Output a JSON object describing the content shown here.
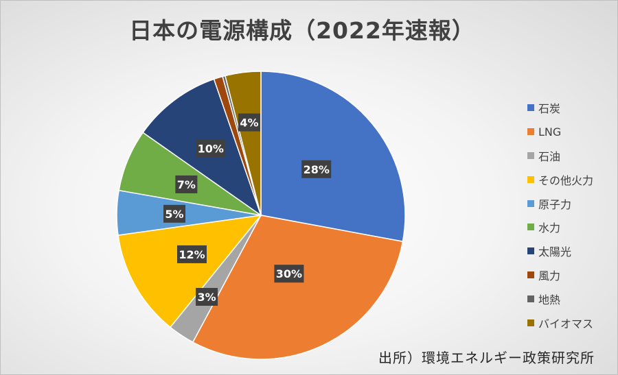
{
  "chart_data": {
    "type": "pie",
    "title": "日本の電源構成（2022年速報）",
    "categories": [
      "石炭",
      "LNG",
      "石油",
      "その他火力",
      "原子力",
      "水力",
      "太陽光",
      "風力",
      "地熱",
      "バイオマス"
    ],
    "values": [
      28,
      30,
      3,
      12,
      5,
      7,
      10,
      1,
      0.3,
      4
    ],
    "data_labels": [
      "28%",
      "30%",
      "3%",
      "12%",
      "5%",
      "7%",
      "10%",
      "",
      "",
      "4%"
    ],
    "colors": [
      "#4472C4",
      "#ED7D31",
      "#A5A5A5",
      "#FFC000",
      "#5B9BD5",
      "#70AD47",
      "#264478",
      "#9E480E",
      "#636363",
      "#997300"
    ],
    "start_angle_deg": 0,
    "direction": "clockwise",
    "legend_position": "right"
  },
  "source": "出所）環境エネルギー政策研究所"
}
